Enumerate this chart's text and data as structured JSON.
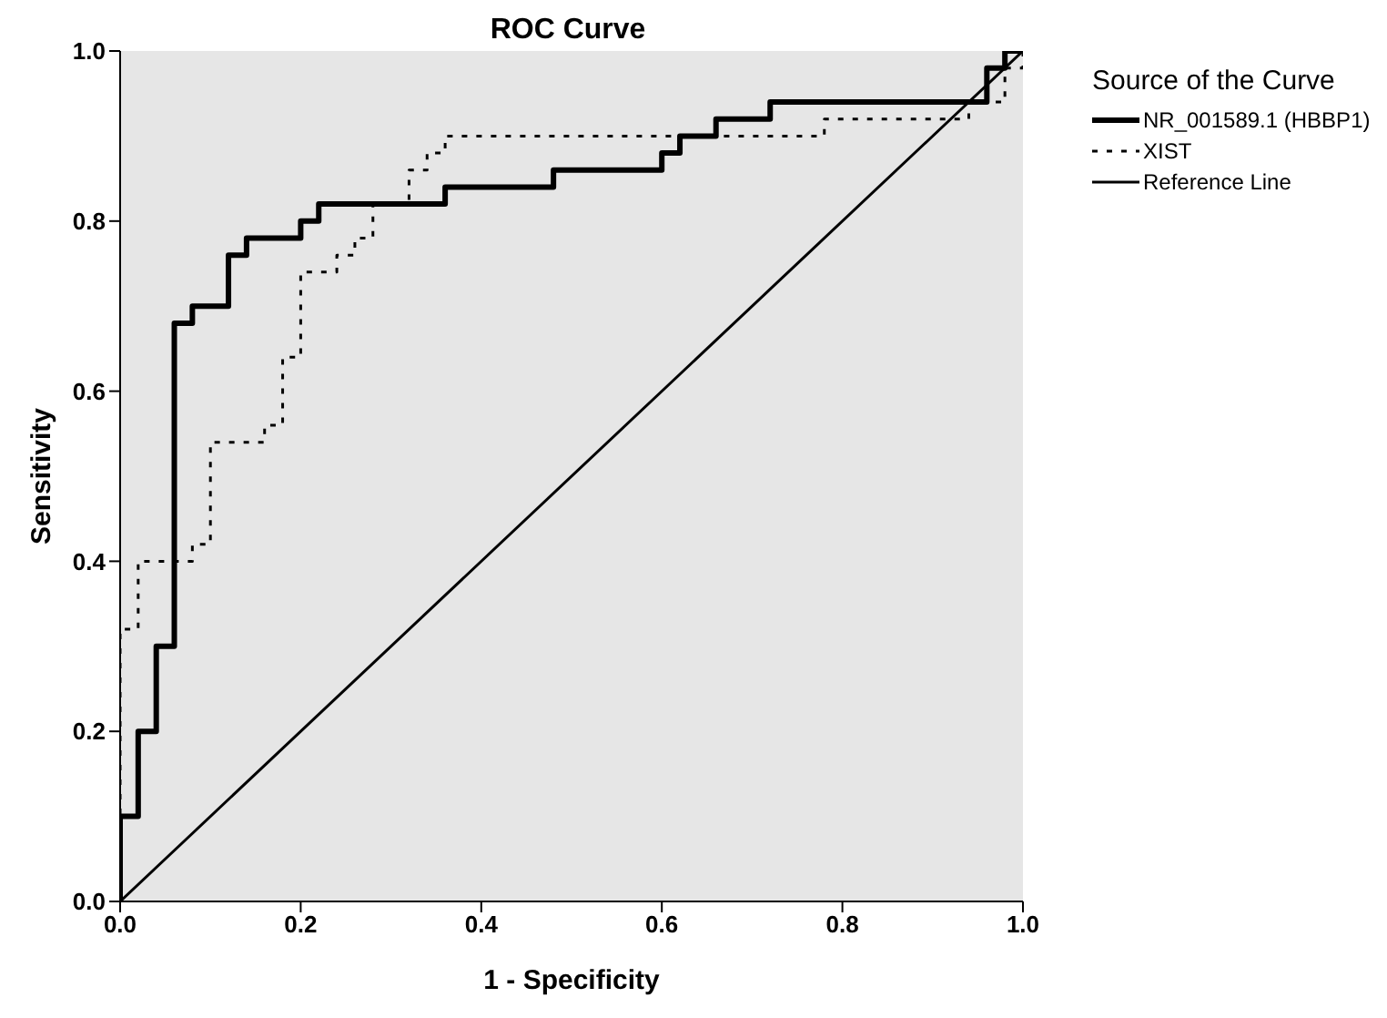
{
  "chart_data": {
    "type": "line",
    "title": "ROC Curve",
    "xlabel": "1 - Specificity",
    "ylabel": "Sensitivity",
    "legend_title": "Source of the Curve",
    "legend": "top right",
    "grid": false,
    "marker": "none",
    "xlim": [
      0,
      1
    ],
    "ylim": [
      0,
      1
    ],
    "xticks": [
      {
        "value": 0,
        "label": "0.0"
      },
      {
        "value": 0.2,
        "label": "0.2"
      },
      {
        "value": 0.4,
        "label": "0.4"
      },
      {
        "value": 0.6,
        "label": "0.6"
      },
      {
        "value": 0.8,
        "label": "0.8"
      },
      {
        "value": 1,
        "label": "1.0"
      }
    ],
    "yticks": [
      {
        "value": 0,
        "label": "0.0"
      },
      {
        "value": 0.2,
        "label": "0.2"
      },
      {
        "value": 0.4,
        "label": "0.4"
      },
      {
        "value": 0.6,
        "label": "0.6"
      },
      {
        "value": 0.8,
        "label": "0.8"
      },
      {
        "value": 1,
        "label": "1.0"
      }
    ],
    "series": [
      {
        "name": "NR_001589.1 (HBBP1)",
        "color": "#000000",
        "line_style": "solid",
        "x": [
          0,
          0,
          0.02,
          0.02,
          0.04,
          0.04,
          0.06,
          0.06,
          0.08,
          0.08,
          0.12,
          0.12,
          0.14,
          0.14,
          0.2,
          0.2,
          0.22,
          0.22,
          0.36,
          0.36,
          0.48,
          0.48,
          0.6,
          0.6,
          0.62,
          0.62,
          0.66,
          0.66,
          0.72,
          0.72,
          0.96,
          0.96,
          0.98,
          0.98,
          1
        ],
        "values": [
          0,
          0.1,
          0.1,
          0.2,
          0.2,
          0.3,
          0.3,
          0.68,
          0.68,
          0.7,
          0.7,
          0.76,
          0.76,
          0.78,
          0.78,
          0.8,
          0.8,
          0.82,
          0.82,
          0.84,
          0.84,
          0.86,
          0.86,
          0.88,
          0.88,
          0.9,
          0.9,
          0.92,
          0.92,
          0.94,
          0.94,
          0.98,
          0.98,
          1,
          1
        ]
      },
      {
        "name": "XIST",
        "color": "#000000",
        "line_style": "dotted",
        "x": [
          0,
          0,
          0.02,
          0.02,
          0.08,
          0.08,
          0.1,
          0.1,
          0.16,
          0.16,
          0.18,
          0.18,
          0.2,
          0.2,
          0.24,
          0.24,
          0.26,
          0.26,
          0.28,
          0.28,
          0.32,
          0.32,
          0.34,
          0.34,
          0.36,
          0.36,
          0.78,
          0.78,
          0.94,
          0.94,
          0.98,
          0.98,
          1,
          1
        ],
        "values": [
          0,
          0.32,
          0.32,
          0.4,
          0.4,
          0.42,
          0.42,
          0.54,
          0.54,
          0.56,
          0.56,
          0.64,
          0.64,
          0.74,
          0.74,
          0.76,
          0.76,
          0.78,
          0.78,
          0.82,
          0.82,
          0.86,
          0.86,
          0.88,
          0.88,
          0.9,
          0.9,
          0.92,
          0.92,
          0.94,
          0.94,
          0.98,
          0.98,
          1
        ]
      },
      {
        "name": "Reference Line",
        "color": "#000000",
        "line_style": "solid",
        "x": [
          0,
          1
        ],
        "values": [
          0,
          1
        ]
      }
    ]
  }
}
